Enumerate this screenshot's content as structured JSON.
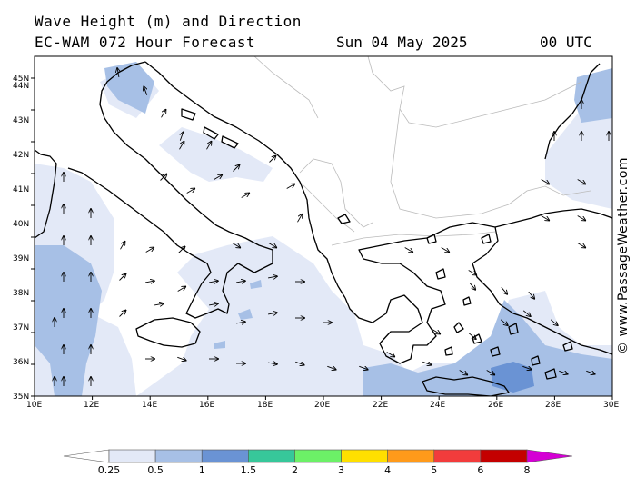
{
  "header": {
    "line1": "Wave Height (m) and Direction",
    "line2": "EC-WAM 072 Hour Forecast",
    "date": "Sun 04 May 2025",
    "time": "00 UTC"
  },
  "credit": "© www.PassageWeather.com",
  "map": {
    "lat_labels": [
      "45N",
      "44N",
      "43N",
      "42N",
      "41N",
      "40N",
      "39N",
      "38N",
      "37N",
      "36N",
      "35N"
    ],
    "lon_labels": [
      "10E",
      "12E",
      "14E",
      "16E",
      "18E",
      "20E",
      "22E",
      "24E",
      "26E",
      "28E",
      "30E"
    ]
  },
  "legend": {
    "levels": [
      "0.25",
      "0.5",
      "1",
      "1.5",
      "2",
      "3",
      "4",
      "5",
      "6",
      "8"
    ],
    "colors": [
      "#ffffff",
      "#e3e9f7",
      "#a7c0e6",
      "#6a93d4",
      "#37c79a",
      "#6cf067",
      "#ffe000",
      "#ff9a1a",
      "#f23c3c",
      "#c40000",
      "#d400d4"
    ]
  }
}
